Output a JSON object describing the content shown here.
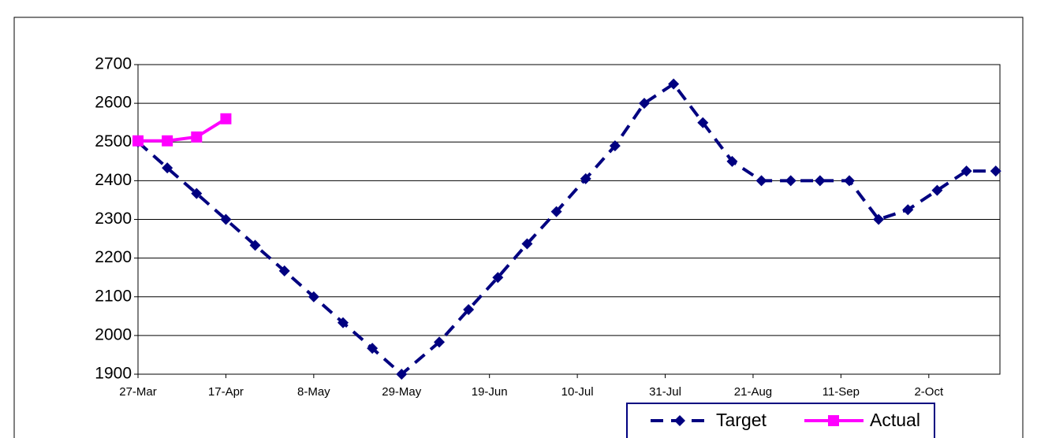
{
  "chart_data": {
    "type": "line",
    "x": [
      0,
      7,
      14,
      21,
      28,
      35,
      42,
      49,
      56,
      63,
      72,
      79,
      86,
      93,
      100,
      107,
      114,
      121,
      128,
      135,
      142,
      149,
      156,
      163,
      170,
      177,
      184,
      191,
      198,
      205
    ],
    "series": [
      {
        "name": "Target",
        "color": "#000080",
        "dash": true,
        "marker": "diamond",
        "values": [
          2500,
          2433,
          2367,
          2300,
          2233,
          2167,
          2100,
          2033,
          1967,
          1900,
          1983,
          2067,
          2150,
          2237,
          2320,
          2405,
          2490,
          2600,
          2650,
          2550,
          2450,
          2400,
          2400,
          2400,
          2400,
          2300,
          2325,
          2375,
          2425,
          2425
        ]
      },
      {
        "name": "Actual",
        "color": "#ff00ff",
        "dash": false,
        "marker": "square",
        "values": [
          2503,
          2503,
          2513,
          2560,
          null,
          null,
          null,
          null,
          null,
          null,
          null,
          null,
          null,
          null,
          null,
          null,
          null,
          null,
          null,
          null,
          null,
          null,
          null,
          null,
          null,
          null,
          null,
          null,
          null,
          null
        ]
      }
    ],
    "xlim": [
      0,
      206
    ],
    "xticks": [
      {
        "value": 0,
        "label": "27-Mar"
      },
      {
        "value": 21,
        "label": "17-Apr"
      },
      {
        "value": 42,
        "label": "8-May"
      },
      {
        "value": 63,
        "label": "29-May"
      },
      {
        "value": 84,
        "label": "19-Jun"
      },
      {
        "value": 105,
        "label": "10-Jul"
      },
      {
        "value": 126,
        "label": "31-Jul"
      },
      {
        "value": 147,
        "label": "21-Aug"
      },
      {
        "value": 168,
        "label": "11-Sep"
      },
      {
        "value": 189,
        "label": "2-Oct"
      }
    ],
    "ylim": [
      1900,
      2700
    ],
    "yticks": [
      1900,
      2000,
      2100,
      2200,
      2300,
      2400,
      2500,
      2600,
      2700
    ],
    "grid": true,
    "legend": "bottom"
  }
}
